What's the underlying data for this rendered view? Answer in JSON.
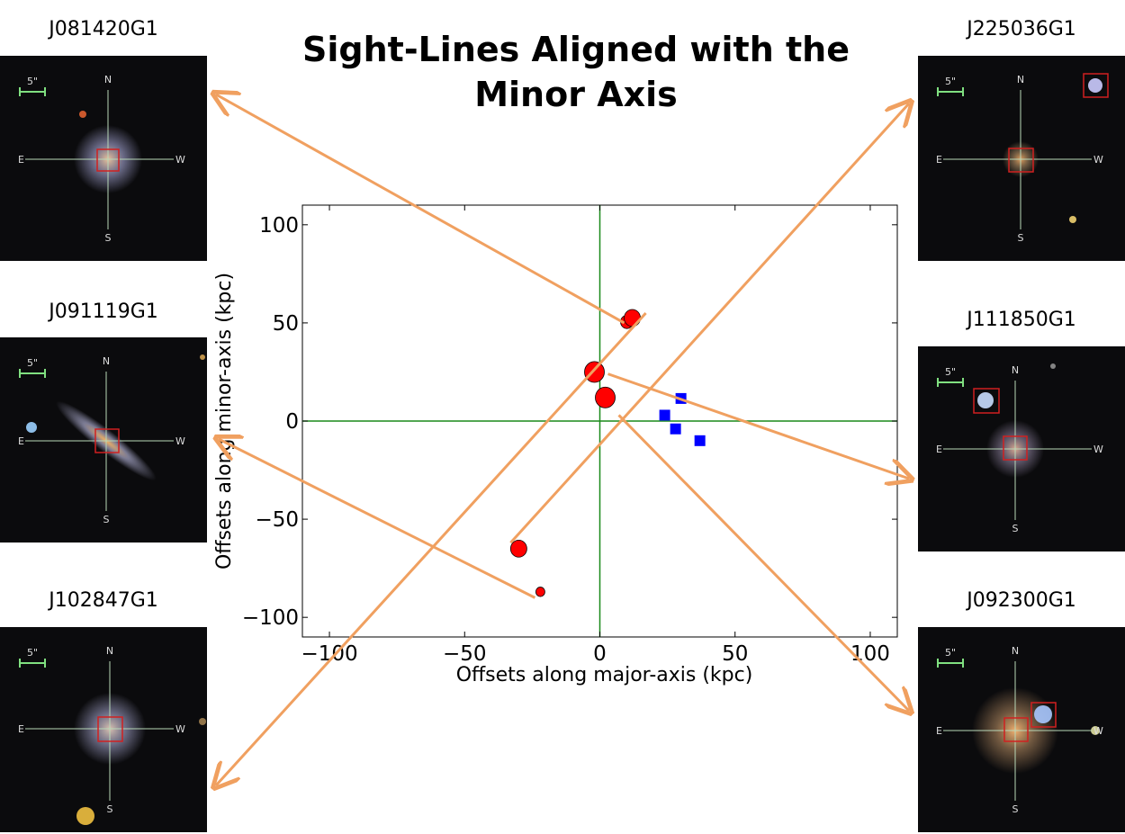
{
  "title_lines": [
    "Sight-Lines Aligned with the",
    "Minor Axis"
  ],
  "galaxies": [
    {
      "id": "J081420G1",
      "scale": "5\"",
      "n": "N",
      "s": "S",
      "e": "E",
      "w": "W"
    },
    {
      "id": "J091119G1",
      "scale": "5\"",
      "n": "N",
      "s": "S",
      "e": "E",
      "w": "W"
    },
    {
      "id": "J102847G1",
      "scale": "5\"",
      "n": "N",
      "s": "S",
      "e": "E",
      "w": "W"
    },
    {
      "id": "J225036G1",
      "scale": "5\"",
      "n": "N",
      "s": "S",
      "e": "E",
      "w": "W"
    },
    {
      "id": "J111850G1",
      "scale": "5\"",
      "n": "N",
      "s": "S",
      "e": "E",
      "w": "W"
    },
    {
      "id": "J092300G1",
      "scale": "5\"",
      "n": "N",
      "s": "S",
      "e": "E",
      "w": "W"
    }
  ],
  "colors": {
    "arrow": "#f0a060",
    "axis_line": "#1a8a1a",
    "red_marker": "#ff0000",
    "blue_marker": "#0000ff"
  },
  "chart_data": {
    "type": "scatter",
    "xlabel": "Offsets along major-axis (kpc)",
    "ylabel": "Offsets along minor-axis (kpc)",
    "xlim": [
      -110,
      110
    ],
    "ylim": [
      -110,
      110
    ],
    "xticks": [
      -100,
      -50,
      0,
      50,
      100
    ],
    "yticks": [
      -100,
      -50,
      0,
      50,
      100
    ],
    "tick_labels_x": [
      "−100",
      "−50",
      "0",
      "50",
      "100"
    ],
    "tick_labels_y": [
      "−100",
      "−50",
      "0",
      "50",
      "100"
    ],
    "grid": false,
    "zero_lines": true,
    "series": [
      {
        "marker": "circle",
        "color": "#ff0000",
        "points": [
          {
            "x": 10,
            "y": 50.5,
            "size": "small"
          },
          {
            "x": 12,
            "y": 52.5,
            "size": "medium"
          },
          {
            "x": -2,
            "y": 25,
            "size": "large"
          },
          {
            "x": 2,
            "y": 12,
            "size": "large"
          },
          {
            "x": -30,
            "y": -65,
            "size": "medium"
          },
          {
            "x": -22,
            "y": -87,
            "size": "tiny"
          }
        ]
      },
      {
        "marker": "square",
        "color": "#0000ff",
        "points": [
          {
            "x": 30,
            "y": 11.5
          },
          {
            "x": 24,
            "y": 3
          },
          {
            "x": 28,
            "y": -4
          },
          {
            "x": 37,
            "y": -10
          }
        ]
      }
    ],
    "links": [
      {
        "from": {
          "x": 9,
          "y": 50
        },
        "to_galaxy": 0
      },
      {
        "from": {
          "x": 17,
          "y": 55
        },
        "to_galaxy": 3
      },
      {
        "from": {
          "x": 3,
          "y": 24
        },
        "to_galaxy": 4
      },
      {
        "from": {
          "x": 7,
          "y": 3
        },
        "to_galaxy": 5
      },
      {
        "from": {
          "x": -33,
          "y": -62
        },
        "to_galaxy": 1
      },
      {
        "from": {
          "x": -24,
          "y": -90
        },
        "to_galaxy": 2
      }
    ]
  }
}
